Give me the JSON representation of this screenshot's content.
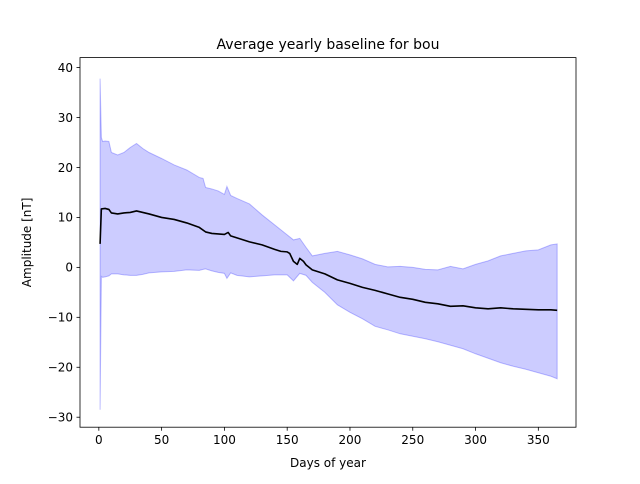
{
  "chart_data": {
    "type": "area",
    "title": "Average yearly baseline for bou",
    "xlabel": "Days of year",
    "ylabel": "Amplitude [nT]",
    "xlim": [
      -15,
      380
    ],
    "ylim": [
      -32,
      42
    ],
    "xticks": [
      0,
      50,
      100,
      150,
      200,
      250,
      300,
      350
    ],
    "yticks": [
      -30,
      -20,
      -10,
      0,
      10,
      20,
      30,
      40
    ],
    "xtick_labels": [
      "0",
      "50",
      "100",
      "150",
      "200",
      "250",
      "300",
      "350"
    ],
    "ytick_labels": [
      "−30",
      "−20",
      "−10",
      "0",
      "10",
      "20",
      "30",
      "40"
    ],
    "grid": false,
    "colors": {
      "band": "#0000ff",
      "band_alpha": 0.2,
      "line": "#000000"
    },
    "series": [
      {
        "kind": "line",
        "x": [
          1,
          2,
          5,
          8,
          10,
          15,
          20,
          25,
          30,
          35,
          40,
          50,
          60,
          70,
          80,
          85,
          90,
          95,
          100,
          103,
          105,
          110,
          120,
          130,
          140,
          145,
          150,
          152,
          155,
          158,
          160,
          163,
          165,
          170,
          180,
          190,
          200,
          210,
          220,
          230,
          240,
          250,
          260,
          270,
          280,
          290,
          300,
          310,
          320,
          330,
          340,
          350,
          360,
          365
        ],
        "y": [
          4.7,
          11.7,
          11.8,
          11.6,
          10.9,
          10.7,
          10.9,
          11.0,
          11.3,
          11.0,
          10.7,
          10.0,
          9.6,
          8.9,
          8.0,
          7.1,
          6.8,
          6.7,
          6.6,
          7.0,
          6.3,
          5.9,
          5.1,
          4.5,
          3.6,
          3.2,
          3.1,
          2.8,
          1.2,
          0.6,
          1.8,
          1.2,
          0.5,
          -0.5,
          -1.3,
          -2.5,
          -3.2,
          -4.0,
          -4.6,
          -5.3,
          -6.0,
          -6.4,
          -7.0,
          -7.3,
          -7.8,
          -7.7,
          -8.1,
          -8.3,
          -8.1,
          -8.3,
          -8.4,
          -8.5,
          -8.5,
          -8.6
        ]
      },
      {
        "kind": "band",
        "x": [
          1,
          2,
          3,
          5,
          8,
          10,
          15,
          20,
          25,
          30,
          35,
          40,
          50,
          60,
          70,
          80,
          83,
          85,
          90,
          95,
          100,
          102,
          105,
          110,
          120,
          130,
          140,
          150,
          155,
          160,
          165,
          170,
          180,
          190,
          200,
          210,
          220,
          230,
          240,
          250,
          260,
          270,
          280,
          290,
          300,
          310,
          320,
          330,
          340,
          350,
          360,
          365
        ],
        "upper": [
          37.8,
          26.0,
          25.2,
          25.3,
          25.2,
          23.0,
          22.5,
          23.0,
          24.0,
          24.8,
          23.8,
          23.0,
          21.8,
          20.5,
          19.5,
          18.0,
          17.8,
          16.0,
          15.7,
          15.3,
          14.6,
          16.2,
          14.4,
          13.8,
          12.7,
          10.5,
          8.5,
          6.5,
          5.5,
          5.8,
          4.0,
          2.3,
          2.8,
          3.2,
          2.5,
          1.7,
          0.6,
          0.1,
          0.2,
          0.0,
          -0.4,
          -0.5,
          0.2,
          -0.3,
          0.6,
          1.3,
          2.3,
          2.8,
          3.3,
          3.5,
          4.5,
          4.7
        ],
        "lower": [
          -28.5,
          -1.8,
          -2.0,
          -1.9,
          -1.7,
          -1.3,
          -1.3,
          -1.5,
          -1.6,
          -1.6,
          -1.4,
          -1.1,
          -0.9,
          -0.8,
          -0.5,
          -0.6,
          -0.4,
          -0.3,
          -0.7,
          -1.0,
          -1.2,
          -2.2,
          -1.1,
          -1.6,
          -1.9,
          -1.7,
          -1.5,
          -1.5,
          -2.7,
          -1.2,
          -1.6,
          -3.0,
          -5.0,
          -7.5,
          -9.0,
          -10.3,
          -11.8,
          -12.5,
          -13.3,
          -13.8,
          -14.3,
          -14.9,
          -15.6,
          -16.3,
          -17.3,
          -18.2,
          -19.1,
          -19.8,
          -20.4,
          -21.1,
          -21.8,
          -22.3
        ]
      }
    ]
  }
}
